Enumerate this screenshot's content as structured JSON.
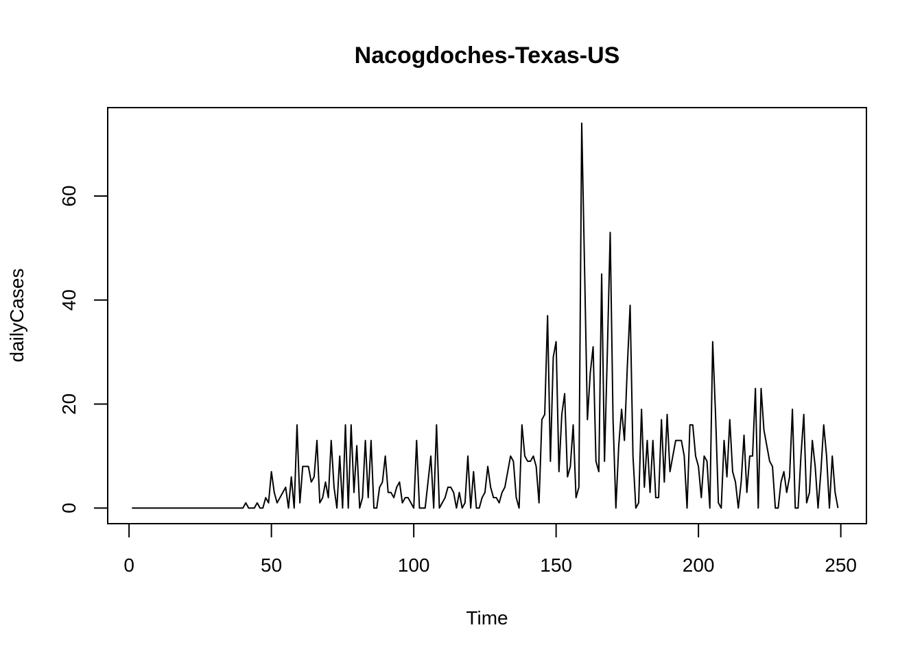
{
  "chart_data": {
    "type": "line",
    "title": "Nacogdoches-Texas-US",
    "xlabel": "Time",
    "ylabel": "dailyCases",
    "xlim": [
      -7.5,
      259
    ],
    "ylim": [
      -3,
      77
    ],
    "xticks": [
      0,
      50,
      100,
      150,
      200,
      250
    ],
    "yticks": [
      0,
      20,
      40,
      60
    ],
    "xtick_labels": [
      "0",
      "50",
      "100",
      "150",
      "200",
      "250"
    ],
    "ytick_labels": [
      "0",
      "20",
      "40",
      "60"
    ],
    "grid": false,
    "line_color": "#000000",
    "series": [
      {
        "x_start": 1,
        "values": [
          0,
          0,
          0,
          0,
          0,
          0,
          0,
          0,
          0,
          0,
          0,
          0,
          0,
          0,
          0,
          0,
          0,
          0,
          0,
          0,
          0,
          0,
          0,
          0,
          0,
          0,
          0,
          0,
          0,
          0,
          0,
          0,
          0,
          0,
          0,
          0,
          0,
          0,
          0,
          0,
          1,
          0,
          0,
          0,
          1,
          0,
          0,
          2,
          1,
          7,
          3,
          1,
          2,
          3,
          4,
          0,
          6,
          0,
          16,
          1,
          8,
          8,
          8,
          5,
          6,
          13,
          1,
          2,
          5,
          2,
          13,
          4,
          0,
          10,
          0,
          16,
          0,
          16,
          3,
          12,
          0,
          2,
          13,
          2,
          13,
          0,
          0,
          4,
          5,
          10,
          3,
          3,
          2,
          4,
          5,
          1,
          2,
          2,
          1,
          0,
          13,
          0,
          0,
          0,
          5,
          10,
          0,
          16,
          0,
          1,
          2,
          4,
          4,
          3,
          0,
          3,
          0,
          1,
          10,
          0,
          7,
          0,
          0,
          2,
          3,
          8,
          4,
          2,
          2,
          1,
          3,
          4,
          7,
          10,
          9,
          2,
          0,
          16,
          10,
          9,
          9,
          10,
          8,
          1,
          17,
          18,
          37,
          9,
          29,
          32,
          7,
          18,
          22,
          6,
          8,
          16,
          2,
          4,
          74,
          46,
          17,
          26,
          31,
          9,
          7,
          45,
          9,
          30,
          53,
          17,
          0,
          12,
          19,
          13,
          27,
          39,
          10,
          0,
          1,
          19,
          4,
          13,
          3,
          13,
          2,
          2,
          17,
          5,
          18,
          7,
          10,
          13,
          13,
          13,
          10,
          0,
          16,
          16,
          10,
          8,
          2,
          10,
          9,
          0,
          32,
          18,
          1,
          0,
          13,
          6,
          17,
          7,
          5,
          0,
          5,
          14,
          3,
          10,
          10,
          23,
          0,
          23,
          15,
          12,
          9,
          8,
          0,
          0,
          5,
          7,
          3,
          6,
          19,
          0,
          0,
          10,
          18,
          1,
          3,
          13,
          8,
          0,
          7,
          16,
          10,
          0,
          10,
          3,
          0
        ]
      }
    ]
  }
}
